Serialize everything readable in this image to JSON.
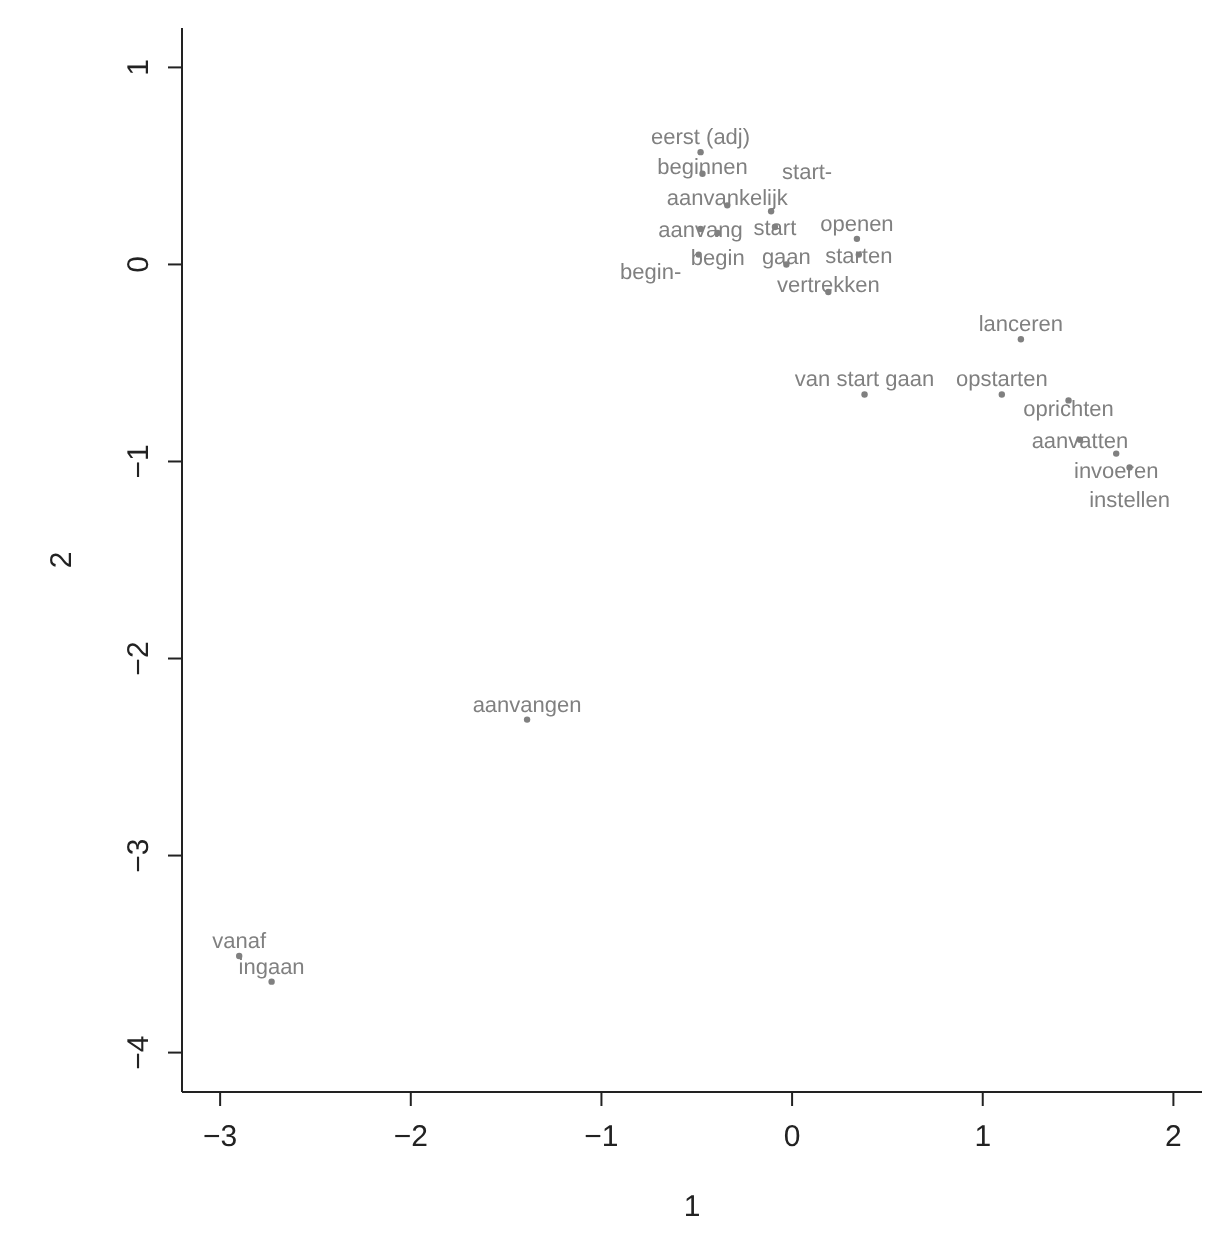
{
  "chart_data": {
    "type": "scatter",
    "xlabel": "1",
    "ylabel": "2",
    "xlim": [
      -3.2,
      2.15
    ],
    "ylim": [
      -4.2,
      1.2
    ],
    "xticks": [
      -3,
      -2,
      -1,
      0,
      1,
      2
    ],
    "yticks": [
      -4,
      -3,
      -2,
      -1,
      0,
      1
    ],
    "grid": false,
    "legend": false,
    "marker": "circle",
    "series": [
      {
        "color": "#808080",
        "x": [
          -0.48,
          -0.47,
          -0.34,
          -0.11,
          -0.48,
          -0.39,
          -0.09,
          -0.49,
          0.34,
          0.35,
          -0.03,
          0.19,
          1.2,
          0.38,
          1.1,
          1.45,
          1.51,
          1.7,
          1.77,
          -1.39,
          -2.9,
          -2.73
        ],
        "values": [
          0.57,
          0.46,
          0.3,
          0.27,
          0.18,
          0.16,
          0.19,
          0.05,
          0.13,
          0.05,
          0.0,
          -0.14,
          -0.38,
          -0.66,
          -0.66,
          -0.69,
          -0.89,
          -0.96,
          -1.03,
          -2.31,
          -3.51,
          -3.64
        ],
        "value_labels": [
          "eerst (adj)",
          "beginnen",
          "aanvankelijk",
          "start-",
          "aanvang",
          "begin",
          "start",
          "begin-",
          "openen",
          "starten",
          "gaan",
          "vertrekken",
          "lanceren",
          "van start gaan",
          "opstarten",
          "oprichten",
          "aanvatten",
          "invoeren",
          "instellen",
          "aanvangen",
          "vanaf",
          "ingaan"
        ]
      }
    ]
  }
}
